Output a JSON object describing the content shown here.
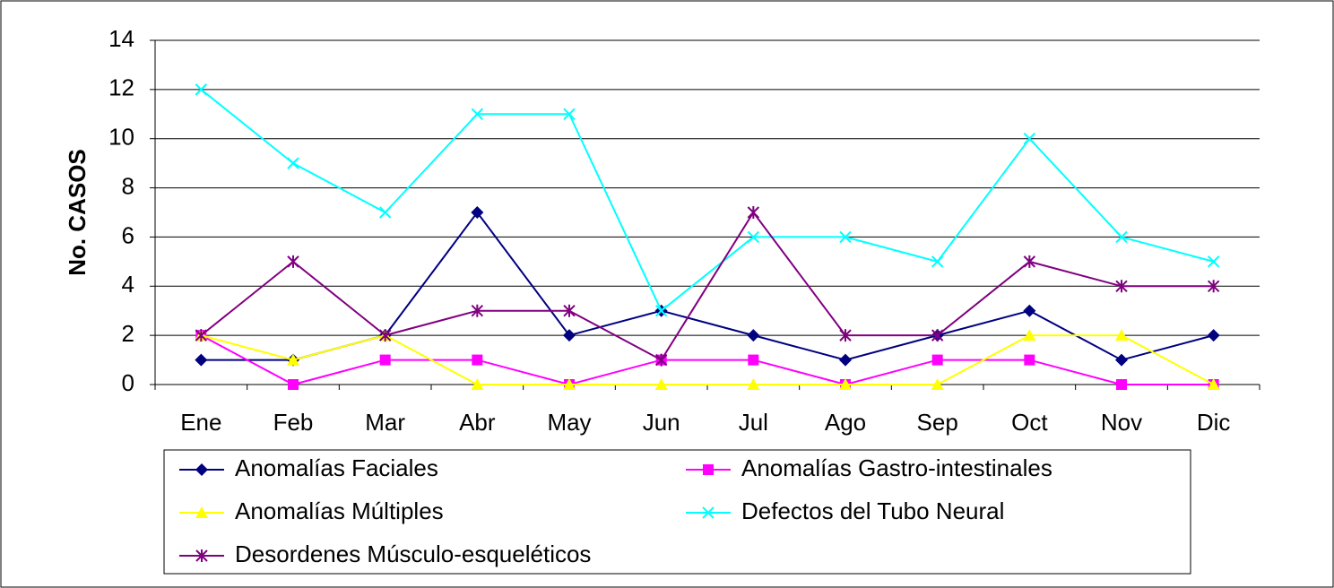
{
  "chart_data": {
    "type": "line",
    "y_label": "No. CASOS",
    "categories": [
      "Ene",
      "Feb",
      "Mar",
      "Abr",
      "May",
      "Jun",
      "Jul",
      "Ago",
      "Sep",
      "Oct",
      "Nov",
      "Dic"
    ],
    "series": [
      {
        "name": "Anomalías Faciales",
        "color": "#000080",
        "marker": "diamond",
        "values": [
          1,
          1,
          2,
          7,
          2,
          3,
          2,
          1,
          2,
          3,
          1,
          2
        ]
      },
      {
        "name": "Anomalías Gastro-intestinales",
        "color": "#ff00ff",
        "marker": "square",
        "values": [
          2,
          0,
          1,
          1,
          0,
          1,
          1,
          0,
          1,
          1,
          0,
          0
        ]
      },
      {
        "name": "Anomalías Múltiples",
        "color": "#ffff00",
        "marker": "triangle",
        "values": [
          2,
          1,
          2,
          0,
          0,
          0,
          0,
          0,
          0,
          2,
          2,
          0
        ]
      },
      {
        "name": "Defectos del Tubo Neural",
        "color": "#00ffff",
        "marker": "x",
        "values": [
          12,
          9,
          7,
          11,
          11,
          3,
          6,
          6,
          5,
          10,
          6,
          5
        ]
      },
      {
        "name": "Desordenes Músculo-esqueléticos",
        "color": "#800080",
        "marker": "star",
        "values": [
          2,
          5,
          2,
          3,
          3,
          1,
          7,
          2,
          2,
          5,
          4,
          4
        ]
      }
    ],
    "ylim": [
      0,
      14
    ],
    "yticks": [
      0,
      2,
      4,
      6,
      8,
      10,
      12,
      14
    ],
    "grid": true,
    "legend": "bottom"
  }
}
